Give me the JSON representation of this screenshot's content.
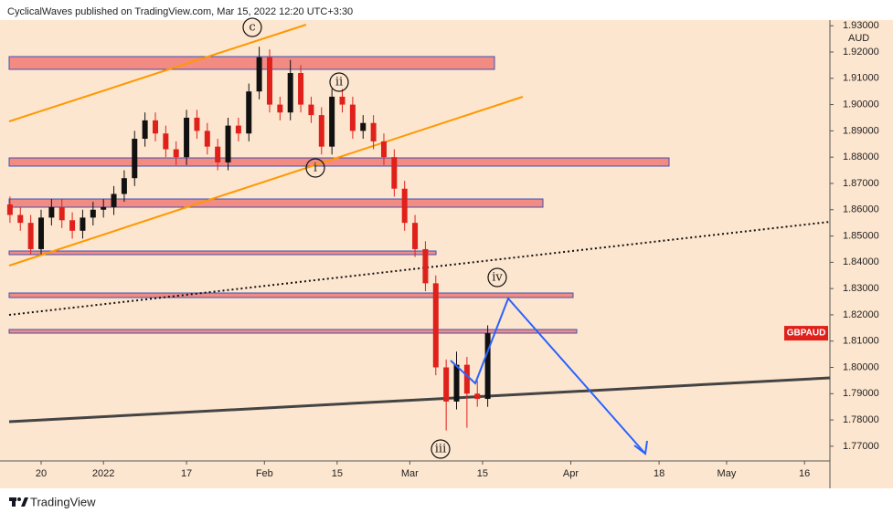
{
  "chart_data": {
    "type": "candlestick",
    "header": "CyclicalWaves published on TradingView.com, Mar 15, 2022 12:20 UTC+3:30",
    "footer": "TradingView",
    "symbol": "GBPAUD",
    "currency": "AUD",
    "annotations": [
      "c",
      "ii",
      "i",
      "iv",
      "iii"
    ],
    "x": [
      -6,
      -4,
      -2,
      0,
      2,
      4,
      6,
      8,
      10,
      12,
      14,
      16,
      18,
      20,
      22,
      24,
      26,
      28,
      30,
      32,
      34,
      36,
      38,
      40,
      42,
      44,
      46,
      48,
      50,
      52,
      54,
      56,
      58,
      60,
      62,
      64,
      66,
      68,
      70,
      72,
      74,
      76,
      78,
      80,
      82,
      84,
      86
    ],
    "open": [
      1.862,
      1.858,
      1.855,
      1.845,
      1.857,
      1.861,
      1.856,
      1.852,
      1.857,
      1.86,
      1.861,
      1.866,
      1.872,
      1.887,
      1.894,
      1.889,
      1.883,
      1.88,
      1.895,
      1.89,
      1.884,
      1.878,
      1.892,
      1.889,
      1.905,
      1.918,
      1.9,
      1.897,
      1.912,
      1.9,
      1.896,
      1.884,
      1.903,
      1.9,
      1.89,
      1.893,
      1.886,
      1.88,
      1.868,
      1.855,
      1.845,
      1.832,
      1.8,
      1.787,
      1.801,
      1.79,
      1.788
    ],
    "high": [
      1.865,
      1.861,
      1.858,
      1.86,
      1.864,
      1.864,
      1.859,
      1.86,
      1.863,
      1.864,
      1.869,
      1.875,
      1.89,
      1.897,
      1.897,
      1.892,
      1.886,
      1.898,
      1.898,
      1.893,
      1.887,
      1.895,
      1.895,
      1.908,
      1.922,
      1.921,
      1.903,
      1.917,
      1.915,
      1.903,
      1.899,
      1.906,
      1.906,
      1.903,
      1.896,
      1.896,
      1.889,
      1.883,
      1.871,
      1.858,
      1.848,
      1.835,
      1.803,
      1.806,
      1.804,
      1.795,
      1.816
    ],
    "low": [
      1.855,
      1.852,
      1.843,
      1.843,
      1.854,
      1.853,
      1.849,
      1.849,
      1.854,
      1.857,
      1.858,
      1.863,
      1.869,
      1.884,
      1.886,
      1.88,
      1.877,
      1.877,
      1.887,
      1.881,
      1.875,
      1.875,
      1.886,
      1.886,
      1.902,
      1.897,
      1.894,
      1.894,
      1.897,
      1.893,
      1.881,
      1.881,
      1.897,
      1.887,
      1.887,
      1.883,
      1.877,
      1.865,
      1.852,
      1.842,
      1.829,
      1.797,
      1.776,
      1.784,
      1.777,
      1.785,
      1.785
    ],
    "close": [
      1.858,
      1.855,
      1.845,
      1.857,
      1.861,
      1.856,
      1.852,
      1.857,
      1.86,
      1.861,
      1.866,
      1.872,
      1.887,
      1.894,
      1.889,
      1.883,
      1.88,
      1.895,
      1.89,
      1.884,
      1.878,
      1.892,
      1.889,
      1.905,
      1.918,
      1.9,
      1.897,
      1.912,
      1.9,
      1.896,
      1.884,
      1.903,
      1.9,
      1.89,
      1.893,
      1.886,
      1.88,
      1.868,
      1.855,
      1.845,
      1.832,
      1.8,
      1.787,
      1.801,
      1.79,
      1.788,
      1.813
    ],
    "up_color": "#111111",
    "down_color": "#e0201b",
    "xlim": [
      -6.16,
      151.9
    ],
    "xticks": [
      {
        "value": 0,
        "label": "20"
      },
      {
        "value": 12,
        "label": "2022"
      },
      {
        "value": 28,
        "label": "17"
      },
      {
        "value": 43,
        "label": "Feb"
      },
      {
        "value": 57,
        "label": "15"
      },
      {
        "value": 71,
        "label": "Mar"
      },
      {
        "value": 85,
        "label": "15"
      },
      {
        "value": 102,
        "label": "Apr"
      },
      {
        "value": 119,
        "label": "18"
      },
      {
        "value": 132,
        "label": "May"
      },
      {
        "value": 147,
        "label": "16"
      }
    ],
    "ylim": [
      1.7644,
      1.9398
    ],
    "yticks": [
      {
        "value": 1.77,
        "label": "1.77000"
      },
      {
        "value": 1.78,
        "label": "1.78000"
      },
      {
        "value": 1.79,
        "label": "1.79000"
      },
      {
        "value": 1.8,
        "label": "1.80000"
      },
      {
        "value": 1.81,
        "label": "1.81000"
      },
      {
        "value": 1.82,
        "label": "1.82000"
      },
      {
        "value": 1.83,
        "label": "1.83000"
      },
      {
        "value": 1.84,
        "label": "1.84000"
      },
      {
        "value": 1.85,
        "label": "1.85000"
      },
      {
        "value": 1.86,
        "label": "1.86000"
      },
      {
        "value": 1.87,
        "label": "1.87000"
      },
      {
        "value": 1.88,
        "label": "1.88000"
      },
      {
        "value": 1.89,
        "label": "1.89000"
      },
      {
        "value": 1.9,
        "label": "1.90000"
      },
      {
        "value": 1.91,
        "label": "1.91000"
      },
      {
        "value": 1.92,
        "label": "1.92000"
      },
      {
        "value": 1.93,
        "label": "1.93000"
      }
    ],
    "grid": false
  }
}
